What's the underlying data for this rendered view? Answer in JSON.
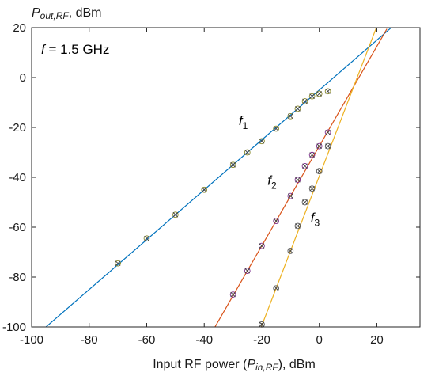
{
  "chart_data": {
    "type": "line",
    "title": "",
    "ylabel": {
      "main": "P",
      "sub": "out,RF",
      "suffix": ", dBm"
    },
    "xlabel": {
      "prefix": "Input RF power (",
      "main": "P",
      "sub": "in,RF",
      "suffix": "), dBm"
    },
    "xlim": [
      -100,
      35
    ],
    "ylim": [
      -100,
      20
    ],
    "xticks": [
      -100,
      -80,
      -60,
      -40,
      -20,
      0,
      20
    ],
    "yticks": [
      -100,
      -80,
      -60,
      -40,
      -20,
      0,
      20
    ],
    "grid": false,
    "annotation": {
      "label": "f",
      "text": " = 1.5 GHz"
    },
    "series": [
      {
        "label_main": "f",
        "label_sub": "1",
        "label_at": [
          -28,
          -19
        ],
        "color": "#0072BD",
        "marker_color": "#8A8A2A",
        "line": {
          "slope": 1,
          "intercept": -5,
          "x_range": [
            -96,
            27
          ]
        },
        "points": [
          {
            "x": -70,
            "y": -74.5
          },
          {
            "x": -60,
            "y": -64.5
          },
          {
            "x": -50,
            "y": -55
          },
          {
            "x": -40,
            "y": -45
          },
          {
            "x": -30,
            "y": -35
          },
          {
            "x": -25,
            "y": -30
          },
          {
            "x": -20,
            "y": -25.5
          },
          {
            "x": -15,
            "y": -20.5
          },
          {
            "x": -10,
            "y": -15.5
          },
          {
            "x": -7.5,
            "y": -12.5
          },
          {
            "x": -5,
            "y": -9.5
          },
          {
            "x": -2.5,
            "y": -7.5
          },
          {
            "x": 0,
            "y": -6.5
          },
          {
            "x": 3,
            "y": -5.5
          }
        ]
      },
      {
        "label_main": "f",
        "label_sub": "2",
        "label_at": [
          -18,
          -43
        ],
        "color": "#D95319",
        "marker_color": "#7E2F8E",
        "line": {
          "slope": 2,
          "intercept": -27.5,
          "x_range": [
            -36.5,
            23.5
          ]
        },
        "points": [
          {
            "x": -30,
            "y": -87
          },
          {
            "x": -25,
            "y": -77.5
          },
          {
            "x": -20,
            "y": -67.5
          },
          {
            "x": -15,
            "y": -57.5
          },
          {
            "x": -10,
            "y": -47.5
          },
          {
            "x": -7.5,
            "y": -41
          },
          {
            "x": -5,
            "y": -35.5
          },
          {
            "x": -2.5,
            "y": -31
          },
          {
            "x": 0,
            "y": -27.5
          },
          {
            "x": 3,
            "y": -22
          }
        ]
      },
      {
        "label_main": "f",
        "label_sub": "3",
        "label_at": [
          -3,
          -58
        ],
        "color": "#EDB120",
        "marker_color": "#555555",
        "line": {
          "slope": 3,
          "intercept": -39.5,
          "x_range": [
            -20.2,
            19.8
          ]
        },
        "points": [
          {
            "x": -20,
            "y": -99
          },
          {
            "x": -15,
            "y": -84.5
          },
          {
            "x": -10,
            "y": -69.5
          },
          {
            "x": -7.5,
            "y": -59.5
          },
          {
            "x": -5,
            "y": -50
          },
          {
            "x": -2.5,
            "y": -44.5
          },
          {
            "x": 0,
            "y": -37.5
          },
          {
            "x": 3,
            "y": -27.5
          }
        ]
      }
    ]
  }
}
